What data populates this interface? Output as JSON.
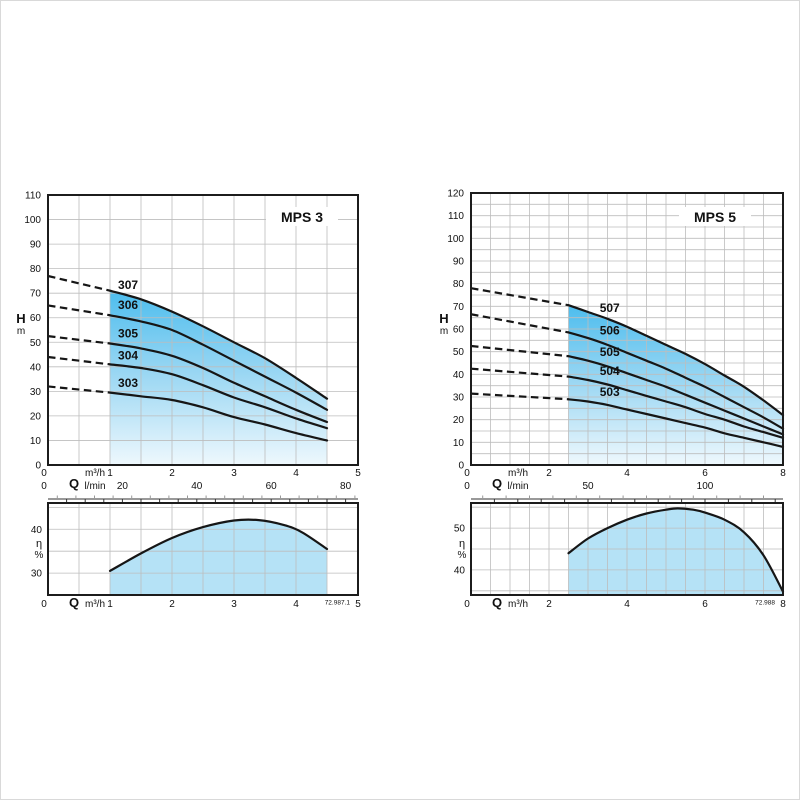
{
  "page": {
    "background": "#ffffff",
    "border_color": "#d9d9d9"
  },
  "colors": {
    "curve": "#161616",
    "grid": "#bdbdbd",
    "box_border": "#1c1c1c",
    "text": "#111111",
    "region_gradient_top": "#4dbdee",
    "region_gradient_mid": "#9bd7f3",
    "region_gradient_bottom": "#eef8fd",
    "eta_fill": "#b5e2f6",
    "ruler_major": "#333333",
    "ruler_minor": "#999999",
    "footnote_color": "#444444"
  },
  "chart_data": [
    {
      "type": "line",
      "title": "MPS 3",
      "footnote": "72.987.1",
      "head_chart": {
        "ylabel": "H",
        "ylabel_unit": "m",
        "xlabel": "Q",
        "x_unit_primary": "m³/h",
        "x_unit_secondary": "l/min",
        "xlim": [
          0,
          5
        ],
        "ylim": [
          0,
          110
        ],
        "ytick_step": 10,
        "grid_y_step": 10,
        "grid_x_step": 0.5,
        "xticks_m3h": [
          1,
          2,
          3,
          4,
          5
        ],
        "xticks_lmin": [
          20,
          40,
          60,
          80
        ],
        "zero_label": "0",
        "region_q": [
          1,
          4.5
        ],
        "ruler_step_lmin": 2.5,
        "series": [
          {
            "name": "307",
            "dash_start": [
              0,
              77
            ],
            "points": [
              [
                1,
                71
              ],
              [
                1.5,
                67.5
              ],
              [
                2,
                62.5
              ],
              [
                2.5,
                56.5
              ],
              [
                3,
                50
              ],
              [
                3.5,
                43.5
              ],
              [
                4,
                35.5
              ],
              [
                4.5,
                27
              ]
            ],
            "label_q": 1.13,
            "label_h": 71.8
          },
          {
            "name": "306",
            "dash_start": [
              0,
              65
            ],
            "points": [
              [
                1,
                61
              ],
              [
                1.5,
                58.5
              ],
              [
                2,
                55
              ],
              [
                2.5,
                49
              ],
              [
                3,
                42.5
              ],
              [
                3.5,
                36
              ],
              [
                4,
                29.5
              ],
              [
                4.5,
                22.5
              ]
            ],
            "label_q": 1.13,
            "label_h": 63.5
          },
          {
            "name": "305",
            "dash_start": [
              0,
              52.5
            ],
            "points": [
              [
                1,
                49.5
              ],
              [
                1.5,
                47.5
              ],
              [
                2,
                44.5
              ],
              [
                2.5,
                39.5
              ],
              [
                3,
                33.5
              ],
              [
                3.5,
                28
              ],
              [
                4,
                22.5
              ],
              [
                4.5,
                17.5
              ]
            ],
            "label_q": 1.13,
            "label_h": 52
          },
          {
            "name": "304",
            "dash_start": [
              0,
              44
            ],
            "points": [
              [
                1,
                41
              ],
              [
                1.5,
                39.5
              ],
              [
                2,
                37
              ],
              [
                2.5,
                32.5
              ],
              [
                3,
                27.5
              ],
              [
                3.5,
                23.5
              ],
              [
                4,
                19
              ],
              [
                4.5,
                15
              ]
            ],
            "label_q": 1.13,
            "label_h": 43
          },
          {
            "name": "303",
            "dash_start": [
              0,
              32
            ],
            "points": [
              [
                1,
                29.5
              ],
              [
                1.5,
                28
              ],
              [
                2,
                26.5
              ],
              [
                2.5,
                23.5
              ],
              [
                3,
                19.5
              ],
              [
                3.5,
                16.5
              ],
              [
                4,
                13
              ],
              [
                4.5,
                10
              ]
            ],
            "label_q": 1.13,
            "label_h": 31.8
          }
        ]
      },
      "eta_chart": {
        "ylabel": "η",
        "ylabel_unit": "%",
        "xlabel": "Q",
        "x_unit": "m³/h",
        "ylim": [
          25,
          46
        ],
        "yticks": [
          30,
          40
        ],
        "grid_y_step": 5,
        "xticks": [
          1,
          2,
          3,
          4,
          5
        ],
        "zero_label": "0",
        "points": [
          [
            1,
            30.5
          ],
          [
            1.5,
            34.5
          ],
          [
            2,
            38
          ],
          [
            2.5,
            40.5
          ],
          [
            3,
            42
          ],
          [
            3.4,
            42.1
          ],
          [
            3.8,
            41
          ],
          [
            4.1,
            39.3
          ],
          [
            4.5,
            35.5
          ]
        ]
      }
    },
    {
      "type": "line",
      "title": "MPS 5",
      "footnote": "72.988",
      "head_chart": {
        "ylabel": "H",
        "ylabel_unit": "m",
        "xlabel": "Q",
        "x_unit_primary": "m³/h",
        "x_unit_secondary": "l/min",
        "xlim": [
          0,
          8
        ],
        "ylim": [
          0,
          120
        ],
        "ytick_step": 10,
        "grid_y_step": 5,
        "grid_x_step": 0.5,
        "xticks_m3h": [
          2,
          4,
          6,
          8
        ],
        "xticks_lmin": [
          50,
          100
        ],
        "zero_label": "0",
        "region_q": [
          2.5,
          8
        ],
        "ruler_step_lmin": 5,
        "series": [
          {
            "name": "507",
            "dash_start": [
              0,
              78
            ],
            "points": [
              [
                2.5,
                70.5
              ],
              [
                3,
                67.5
              ],
              [
                3.5,
                64.5
              ],
              [
                4,
                61
              ],
              [
                4.5,
                57
              ],
              [
                5,
                53
              ],
              [
                5.5,
                49
              ],
              [
                6,
                44.5
              ],
              [
                6.5,
                39.5
              ],
              [
                7,
                34.5
              ],
              [
                7.5,
                28.5
              ],
              [
                8,
                22
              ]
            ],
            "label_q": 3.3,
            "label_h": 67.5
          },
          {
            "name": "506",
            "dash_start": [
              0,
              66.5
            ],
            "points": [
              [
                2.5,
                58.5
              ],
              [
                3,
                56
              ],
              [
                3.5,
                53
              ],
              [
                4,
                49.5
              ],
              [
                4.5,
                46
              ],
              [
                5,
                42.5
              ],
              [
                5.5,
                38.5
              ],
              [
                6,
                34.5
              ],
              [
                6.5,
                30
              ],
              [
                7,
                25.5
              ],
              [
                7.5,
                21
              ],
              [
                8,
                16
              ]
            ],
            "label_q": 3.3,
            "label_h": 57.5
          },
          {
            "name": "505",
            "dash_start": [
              0,
              52.5
            ],
            "points": [
              [
                2.5,
                48
              ],
              [
                3,
                46
              ],
              [
                3.5,
                43.5
              ],
              [
                4,
                40.5
              ],
              [
                4.5,
                37.5
              ],
              [
                5,
                34.5
              ],
              [
                5.5,
                31
              ],
              [
                6,
                27.5
              ],
              [
                6.5,
                24
              ],
              [
                7,
                20.5
              ],
              [
                7.5,
                17
              ],
              [
                8,
                13.5
              ]
            ],
            "label_q": 3.3,
            "label_h": 48
          },
          {
            "name": "504",
            "dash_start": [
              0,
              42.5
            ],
            "points": [
              [
                2.5,
                39
              ],
              [
                3,
                37.5
              ],
              [
                3.5,
                35.5
              ],
              [
                4,
                33
              ],
              [
                4.5,
                30.5
              ],
              [
                5,
                28
              ],
              [
                5.5,
                25.5
              ],
              [
                6,
                22.5
              ],
              [
                6.5,
                20
              ],
              [
                7,
                17
              ],
              [
                7.5,
                14.5
              ],
              [
                8,
                12
              ]
            ],
            "label_q": 3.3,
            "label_h": 39.8
          },
          {
            "name": "503",
            "dash_start": [
              0,
              31.5
            ],
            "points": [
              [
                2.5,
                29
              ],
              [
                3,
                28
              ],
              [
                3.5,
                26.5
              ],
              [
                4,
                24.5
              ],
              [
                4.5,
                22.5
              ],
              [
                5,
                20.5
              ],
              [
                5.5,
                18.5
              ],
              [
                6,
                16.5
              ],
              [
                6.5,
                14
              ],
              [
                7,
                12
              ],
              [
                7.5,
                10
              ],
              [
                8,
                8
              ]
            ],
            "label_q": 3.3,
            "label_h": 30.5
          }
        ]
      },
      "eta_chart": {
        "ylabel": "η",
        "ylabel_unit": "%",
        "xlabel": "Q",
        "x_unit": "m³/h",
        "ylim": [
          34,
          56
        ],
        "yticks": [
          40,
          50
        ],
        "grid_y_step": 5,
        "xticks": [
          2,
          4,
          6,
          8
        ],
        "zero_label": "0",
        "points": [
          [
            2.5,
            44
          ],
          [
            3,
            47.5
          ],
          [
            3.5,
            50
          ],
          [
            4,
            52
          ],
          [
            4.5,
            53.5
          ],
          [
            5,
            54.4
          ],
          [
            5.3,
            54.7
          ],
          [
            5.7,
            54.4
          ],
          [
            6,
            53.7
          ],
          [
            6.5,
            52
          ],
          [
            7,
            49
          ],
          [
            7.5,
            43.5
          ],
          [
            8,
            34.8
          ]
        ]
      }
    }
  ]
}
